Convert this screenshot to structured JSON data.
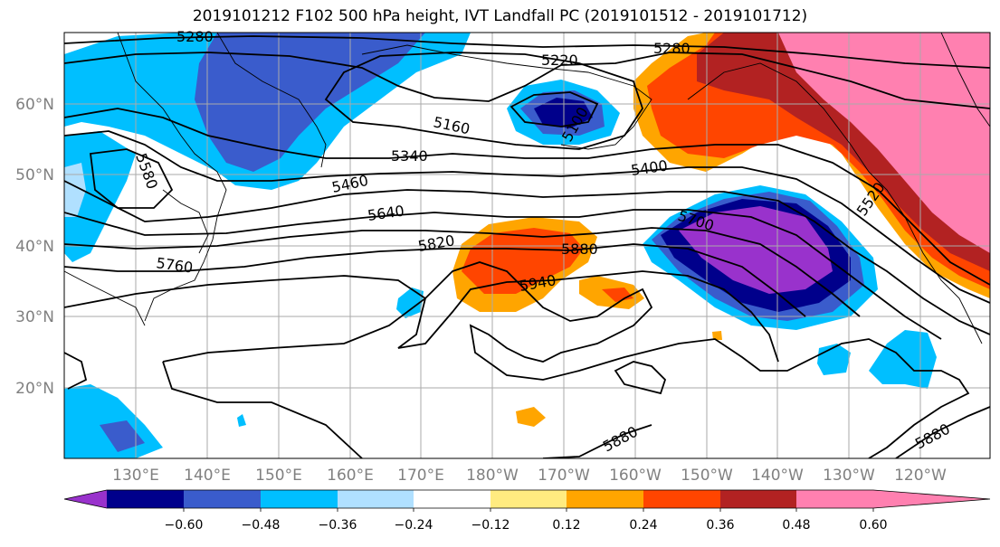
{
  "title": "2019101212 F102 500 hPa height, IVT Landfall PC (2019101512 - 2019101712)",
  "map": {
    "lon_labels": [
      "130°E",
      "140°E",
      "150°E",
      "160°E",
      "170°E",
      "180°W",
      "170°W",
      "160°W",
      "150°W",
      "140°W",
      "130°W",
      "120°W"
    ],
    "lat_labels": [
      "60°N",
      "50°N",
      "40°N",
      "30°N",
      "20°N"
    ],
    "contour_labels": [
      {
        "text": "5280"
      },
      {
        "text": "5220"
      },
      {
        "text": "5280"
      },
      {
        "text": "5160"
      },
      {
        "text": "5100"
      },
      {
        "text": "5340"
      },
      {
        "text": "5580"
      },
      {
        "text": "5460"
      },
      {
        "text": "5400"
      },
      {
        "text": "5640"
      },
      {
        "text": "5700"
      },
      {
        "text": "5820"
      },
      {
        "text": "5880"
      },
      {
        "text": "5760"
      },
      {
        "text": "5940"
      },
      {
        "text": "5520"
      },
      {
        "text": "5880"
      },
      {
        "text": "5880"
      }
    ]
  },
  "colorbar": {
    "ticks": [
      "−0.60",
      "−0.48",
      "−0.36",
      "−0.24",
      "−0.12",
      "0.12",
      "0.24",
      "0.36",
      "0.48",
      "0.60"
    ],
    "colors": [
      "#9932cc",
      "#00008b",
      "#3a5ccc",
      "#00bfff",
      "#b0e0ff",
      "#ffffff",
      "#ffeb80",
      "#ffa500",
      "#ff4500",
      "#b22222",
      "#ff80b0"
    ]
  }
}
